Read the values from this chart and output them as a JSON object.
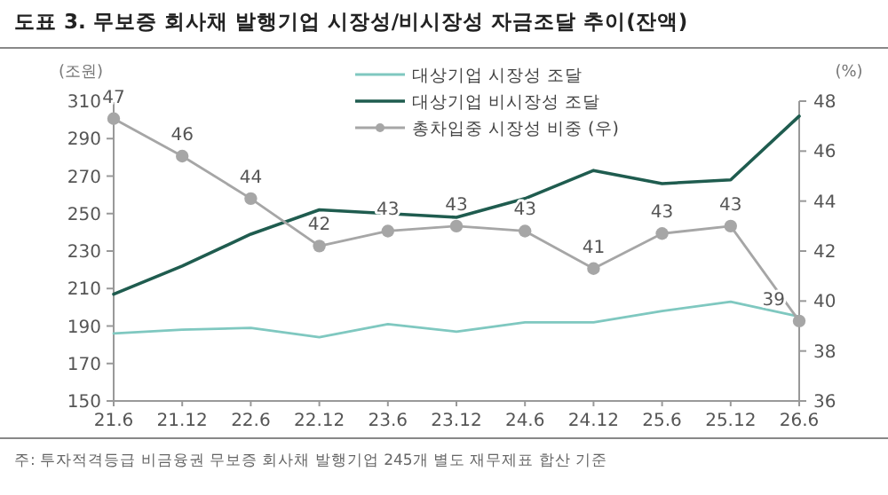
{
  "chart_data": {
    "type": "line",
    "title": "도표 3. 무보증 회사채 발행기업 시장성/비시장성 자금조달 추이(잔액)",
    "ylabel": "(조원)",
    "y2label": "(%)",
    "categories": [
      "21.6",
      "21.12",
      "22.6",
      "22.12",
      "23.6",
      "23.12",
      "24.6",
      "24.12",
      "25.6",
      "25.12",
      "26.6"
    ],
    "series": [
      {
        "name": "대상기업 시장성 조달",
        "color": "#7fc8c0",
        "values": [
          186,
          188,
          189,
          184,
          191,
          187,
          192,
          192,
          198,
          203,
          195
        ],
        "marker": "none"
      },
      {
        "name": "대상기업 비시장성 조달",
        "color": "#1f5c4f",
        "values": [
          207,
          222,
          239,
          252,
          250,
          248,
          258,
          273,
          266,
          268,
          302
        ],
        "marker": "none"
      },
      {
        "name": "총차입중 시장성 비중 (우)",
        "color": "#a6a6a6",
        "axis": "y2",
        "marker": "circle",
        "values": [
          47.3,
          45.8,
          44.1,
          42.2,
          42.8,
          43.0,
          42.8,
          41.3,
          42.7,
          43.0,
          39.2
        ],
        "value_labels": [
          "47",
          "46",
          "44",
          "42",
          "43",
          "43",
          "43",
          "41",
          "43",
          "43",
          "39"
        ]
      }
    ],
    "ylim": [
      150,
      310
    ],
    "yticks": [
      150,
      170,
      190,
      210,
      230,
      250,
      270,
      290,
      310
    ],
    "y2lim": [
      36,
      48
    ],
    "y2ticks": [
      36,
      38,
      40,
      42,
      44,
      46,
      48
    ],
    "grid": false,
    "legend": "top",
    "line_style": "solid",
    "annotations": [
      "주: 투자적격등급 비금융권 무보증 회사채 발행기업 245개 별도 재무제표 합산 기준"
    ]
  }
}
